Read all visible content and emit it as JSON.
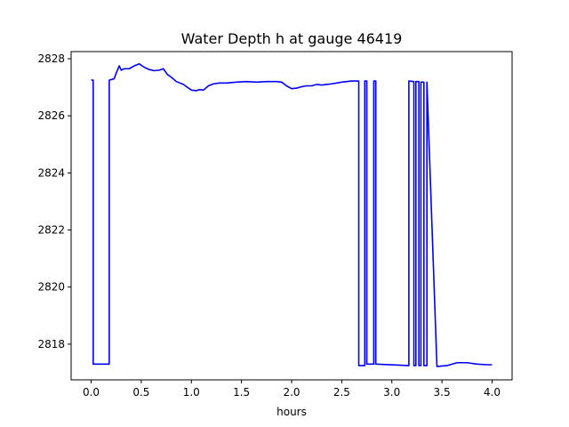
{
  "chart_data": {
    "type": "line",
    "title": "Water Depth h at gauge 46419",
    "xlabel": "hours",
    "ylabel": "",
    "xlim": [
      -0.2,
      4.2
    ],
    "ylim": [
      2816.75,
      2828.25
    ],
    "xticks": [
      0.0,
      0.5,
      1.0,
      1.5,
      2.0,
      2.5,
      3.0,
      3.5,
      4.0
    ],
    "xtick_labels": [
      "0.0",
      "0.5",
      "1.0",
      "1.5",
      "2.0",
      "2.5",
      "3.0",
      "3.5",
      "4.0"
    ],
    "yticks": [
      2818,
      2820,
      2822,
      2824,
      2826,
      2828
    ],
    "ytick_labels": [
      "2818",
      "2820",
      "2822",
      "2824",
      "2826",
      "2828"
    ],
    "grid": false,
    "legend": "none",
    "series": [
      {
        "color": "#0000ff",
        "x": [
          0.0,
          0.02,
          0.02,
          0.18,
          0.18,
          0.23,
          0.25,
          0.28,
          0.3,
          0.33,
          0.38,
          0.43,
          0.48,
          0.53,
          0.58,
          0.63,
          0.68,
          0.72,
          0.76,
          0.8,
          0.85,
          0.92,
          1.0,
          1.05,
          1.08,
          1.12,
          1.17,
          1.22,
          1.28,
          1.35,
          1.45,
          1.55,
          1.65,
          1.75,
          1.85,
          1.9,
          1.95,
          2.0,
          2.05,
          2.1,
          2.15,
          2.2,
          2.25,
          2.3,
          2.35,
          2.4,
          2.45,
          2.5,
          2.55,
          2.6,
          2.67,
          2.67,
          2.73,
          2.73,
          2.75,
          2.75,
          2.82,
          2.82,
          2.84,
          2.84,
          3.17,
          3.17,
          3.22,
          3.22,
          3.24,
          3.24,
          3.27,
          3.27,
          3.29,
          3.29,
          3.32,
          3.32,
          3.35,
          3.35,
          3.45,
          3.55,
          3.65,
          3.75,
          3.85,
          3.95,
          4.0
        ],
        "y": [
          2827.25,
          2827.25,
          2817.3,
          2817.3,
          2827.25,
          2827.3,
          2827.5,
          2827.75,
          2827.6,
          2827.65,
          2827.65,
          2827.75,
          2827.82,
          2827.7,
          2827.62,
          2827.58,
          2827.6,
          2827.65,
          2827.45,
          2827.35,
          2827.2,
          2827.1,
          2826.9,
          2826.88,
          2826.92,
          2826.9,
          2827.05,
          2827.12,
          2827.15,
          2827.15,
          2827.18,
          2827.2,
          2827.18,
          2827.2,
          2827.2,
          2827.18,
          2827.05,
          2826.95,
          2826.97,
          2827.02,
          2827.05,
          2827.05,
          2827.1,
          2827.08,
          2827.1,
          2827.12,
          2827.15,
          2827.18,
          2827.2,
          2827.22,
          2827.22,
          2817.25,
          2817.25,
          2827.22,
          2827.22,
          2817.3,
          2817.3,
          2827.22,
          2827.22,
          2817.3,
          2817.25,
          2827.22,
          2827.2,
          2817.25,
          2817.25,
          2827.2,
          2827.2,
          2817.25,
          2817.25,
          2827.18,
          2827.18,
          2817.25,
          2817.25,
          2827.18,
          2817.22,
          2817.25,
          2817.35,
          2817.35,
          2817.3,
          2817.28,
          2817.28
        ]
      }
    ]
  }
}
